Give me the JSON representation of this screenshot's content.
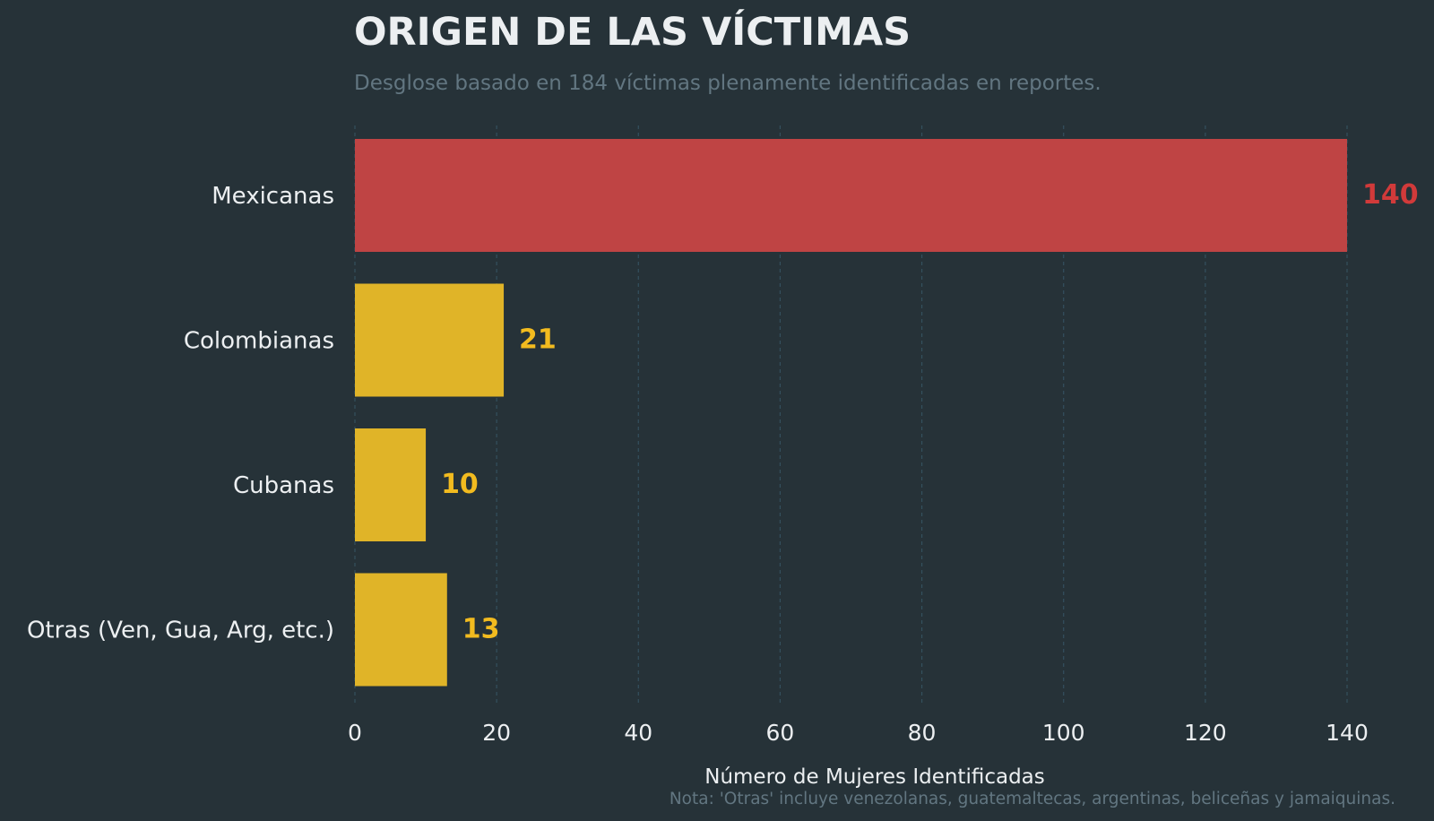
{
  "chart_data": {
    "type": "bar",
    "orientation": "horizontal",
    "title": "ORIGEN DE LAS VÍCTIMAS",
    "subtitle": "Desglose basado en 184 víctimas plenamente identificadas en reportes.",
    "xlabel": "Número de Mujeres Identificadas",
    "ylabel": "",
    "note": "Nota: 'Otras' incluye venezolanas, guatemaltecas, argentinas, beliceñas y jamaiquinas.",
    "categories": [
      "Mexicanas",
      "Colombianas",
      "Cubanas",
      "Otras (Ven, Gua, Arg, etc.)"
    ],
    "values": [
      140,
      21,
      10,
      13
    ],
    "bar_colors": [
      "#bf4444",
      "#e0b428",
      "#e0b428",
      "#e0b428"
    ],
    "label_colors": [
      "#d13a3a",
      "#f2bb1f",
      "#f2bb1f",
      "#f2bb1f"
    ],
    "xlim": [
      0,
      140
    ],
    "xticks": [
      0,
      20,
      40,
      60,
      80,
      100,
      120,
      140
    ],
    "grid": true,
    "legend": "none"
  },
  "colors": {
    "background": "#263238",
    "title": "#eceff1",
    "subtitle": "#627681",
    "tick_text": "#eceff1",
    "grid": "#34505e"
  }
}
